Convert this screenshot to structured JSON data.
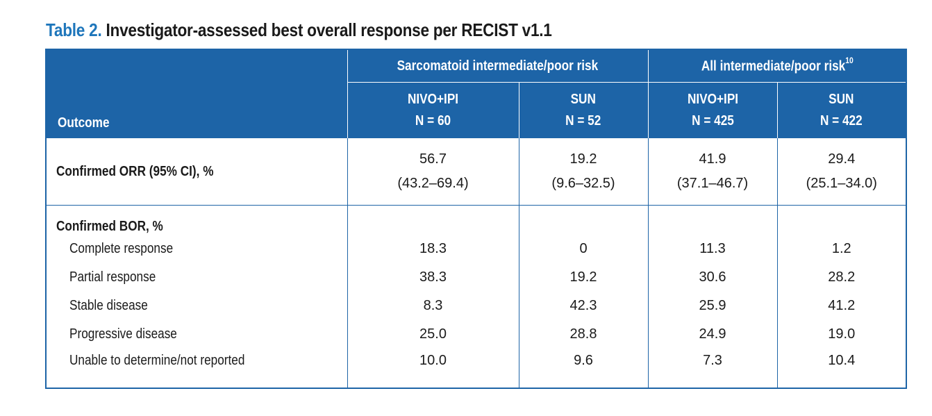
{
  "caption": {
    "label": "Table 2.",
    "text": "Investigator-assessed best overall response per RECIST v1.1"
  },
  "header": {
    "outcome": "Outcome",
    "group1": "Sarcomatoid intermediate/poor risk",
    "group2": "All intermediate/poor risk",
    "group2_ref": "10",
    "arms": [
      {
        "name": "NIVO+IPI",
        "n": "N = 60"
      },
      {
        "name": "SUN",
        "n": "N = 52"
      },
      {
        "name": "NIVO+IPI",
        "n": "N = 425"
      },
      {
        "name": "SUN",
        "n": "N = 422"
      }
    ]
  },
  "orr": {
    "label": "Confirmed ORR (95% CI), %",
    "values": [
      {
        "value": "56.7",
        "ci": "(43.2–69.4)"
      },
      {
        "value": "19.2",
        "ci": "(9.6–32.5)"
      },
      {
        "value": "41.9",
        "ci": "(37.1–46.7)"
      },
      {
        "value": "29.4",
        "ci": "(25.1–34.0)"
      }
    ]
  },
  "bor": {
    "label": "Confirmed BOR, %",
    "rows": [
      {
        "label": "Complete response",
        "values": [
          "18.3",
          "0",
          "11.3",
          "1.2"
        ]
      },
      {
        "label": "Partial response",
        "values": [
          "38.3",
          "19.2",
          "30.6",
          "28.2"
        ]
      },
      {
        "label": "Stable disease",
        "values": [
          "8.3",
          "42.3",
          "25.9",
          "41.2"
        ]
      },
      {
        "label": "Progressive disease",
        "values": [
          "25.0",
          "28.8",
          "24.9",
          "19.0"
        ]
      },
      {
        "label": "Unable to determine/not reported",
        "values": [
          "10.0",
          "9.6",
          "7.3",
          "10.4"
        ]
      }
    ]
  }
}
